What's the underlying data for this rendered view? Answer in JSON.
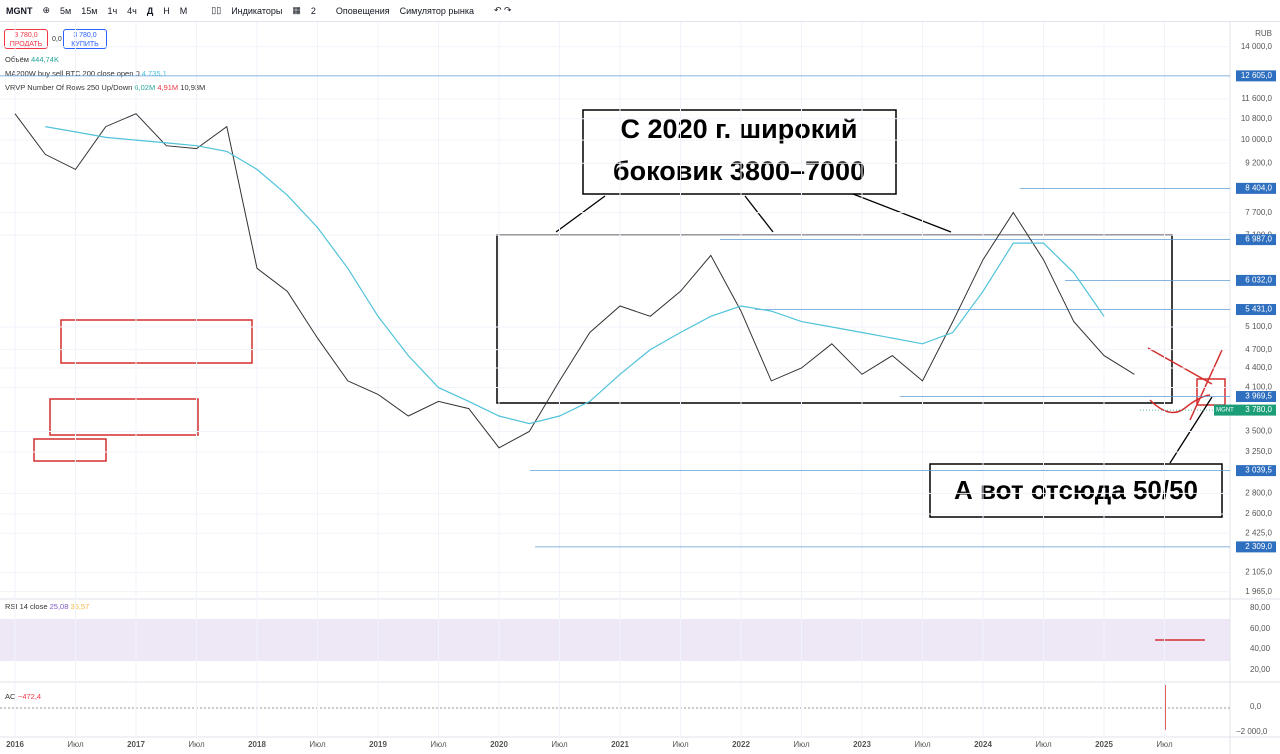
{
  "toolbar": {
    "symbol": "MGNT",
    "intervals": [
      "5м",
      "15м",
      "1ч",
      "4ч",
      "Д",
      "Н",
      "М"
    ],
    "indicators": "Индикаторы",
    "layouts": "2",
    "alerts": "Оповещения",
    "simulator": "Симулятор рынка"
  },
  "trade": {
    "sell_price": "3 780,0",
    "sell": "ПРОДАТЬ",
    "spread": "0,0",
    "buy_price": "3 780,0",
    "buy": "КУПИТЬ"
  },
  "legend": {
    "volume": "Объём",
    "volume_value": "444,74K",
    "ma_value": "4 735,1",
    "vrvp": "VRVP Number Of Rows 250 Up/Down",
    "vrvp_values": [
      "6,02M",
      "4,91M",
      "10,93M"
    ]
  },
  "currency": "RUB",
  "rsi": {
    "label": "RSI 14 close",
    "values": [
      "25,08",
      "35,57"
    ],
    "ticks": [
      "80,00",
      "60,00",
      "40,00",
      "20,00"
    ]
  },
  "ao": {
    "label": "AO",
    "value": "−472,4",
    "ticks": [
      "0,0",
      "−2 000,0"
    ]
  },
  "annotations": {
    "range": [
      "С 2020 г. широкий",
      "боковик 3800–7000"
    ],
    "note": "А вот отсюда 50/50"
  },
  "chart_data": {
    "type": "line",
    "log_scale": true,
    "categories": [
      "2016",
      null,
      "Июл",
      null,
      "2017",
      null,
      "Июл",
      null,
      "2018",
      null,
      "Июл",
      null,
      "2019",
      null,
      "Июл",
      null,
      "2020",
      null,
      "Июл",
      null,
      "2021",
      null,
      "Июл",
      null,
      "2022",
      null,
      "Июл",
      null,
      "2023",
      null,
      "Июл",
      null,
      "2024",
      null,
      "Июл",
      null,
      "2025",
      null,
      "Июл"
    ],
    "series": [
      {
        "name": "MGNT",
        "color": "#333333",
        "values": [
          11000,
          9500,
          9000,
          10500,
          11000,
          9800,
          9700,
          10500,
          6300,
          5800,
          4900,
          4200,
          4000,
          3700,
          3900,
          3800,
          3300,
          3500,
          4200,
          5000,
          5500,
          5300,
          5800,
          6600,
          5400,
          4200,
          4400,
          4800,
          4300,
          4600,
          4200,
          5200,
          6500,
          7700,
          6500,
          5200,
          4600,
          4300,
          null
        ]
      },
      {
        "name": "MA200W buy sell BTC 200 close open 0",
        "color": "#4fc3d9",
        "values": [
          null,
          10500,
          10300,
          10100,
          10000,
          9900,
          9800,
          9600,
          9000,
          8200,
          7300,
          6300,
          5300,
          4600,
          4100,
          3900,
          3700,
          3600,
          3700,
          3900,
          4300,
          4700,
          5000,
          5300,
          5500,
          5400,
          5200,
          5100,
          5000,
          4900,
          4800,
          5000,
          5800,
          6900,
          6900,
          6200,
          5300,
          null,
          null
        ]
      }
    ],
    "levels": [
      {
        "value": 12605,
        "label": "12 605,0"
      },
      {
        "value": 8404,
        "label": "8 404,0"
      },
      {
        "value": 6987,
        "label": "6 987,0"
      },
      {
        "value": 6032,
        "label": "6 032,0"
      },
      {
        "value": 5431,
        "label": "5 431,0"
      },
      {
        "value": 3969.5,
        "label": "3 969,5"
      },
      {
        "value": 3780,
        "label": "3 780,0"
      },
      {
        "value": 3039.5,
        "label": "3 039,5"
      },
      {
        "value": 2309,
        "label": "2 309,0"
      }
    ],
    "ylim": [
      1900,
      14500
    ],
    "yticks": [
      {
        "value": 14000,
        "label": "14 000,0"
      },
      {
        "value": 11600,
        "label": "11 600,0"
      },
      {
        "value": 10800,
        "label": "10 800,0"
      },
      {
        "value": 10000,
        "label": "10 000,0"
      },
      {
        "value": 9200,
        "label": "9 200,0"
      },
      {
        "value": 7700,
        "label": "7 700,0"
      },
      {
        "value": 7100,
        "label": "7 100,0"
      },
      {
        "value": 5100,
        "label": "5 100,0"
      },
      {
        "value": 4700,
        "label": "4 700,0"
      },
      {
        "value": 4400,
        "label": "4 400,0"
      },
      {
        "value": 4100,
        "label": "4 100,0"
      },
      {
        "value": 3500,
        "label": "3 500,0"
      },
      {
        "value": 3250,
        "label": "3 250,0"
      },
      {
        "value": 2800,
        "label": "2 800,0"
      },
      {
        "value": 2600,
        "label": "2 600,0"
      },
      {
        "value": 2425,
        "label": "2 425,0"
      },
      {
        "value": 2105,
        "label": "2 105,0"
      },
      {
        "value": 1965,
        "label": "1 965,0"
      }
    ],
    "grid": true
  }
}
